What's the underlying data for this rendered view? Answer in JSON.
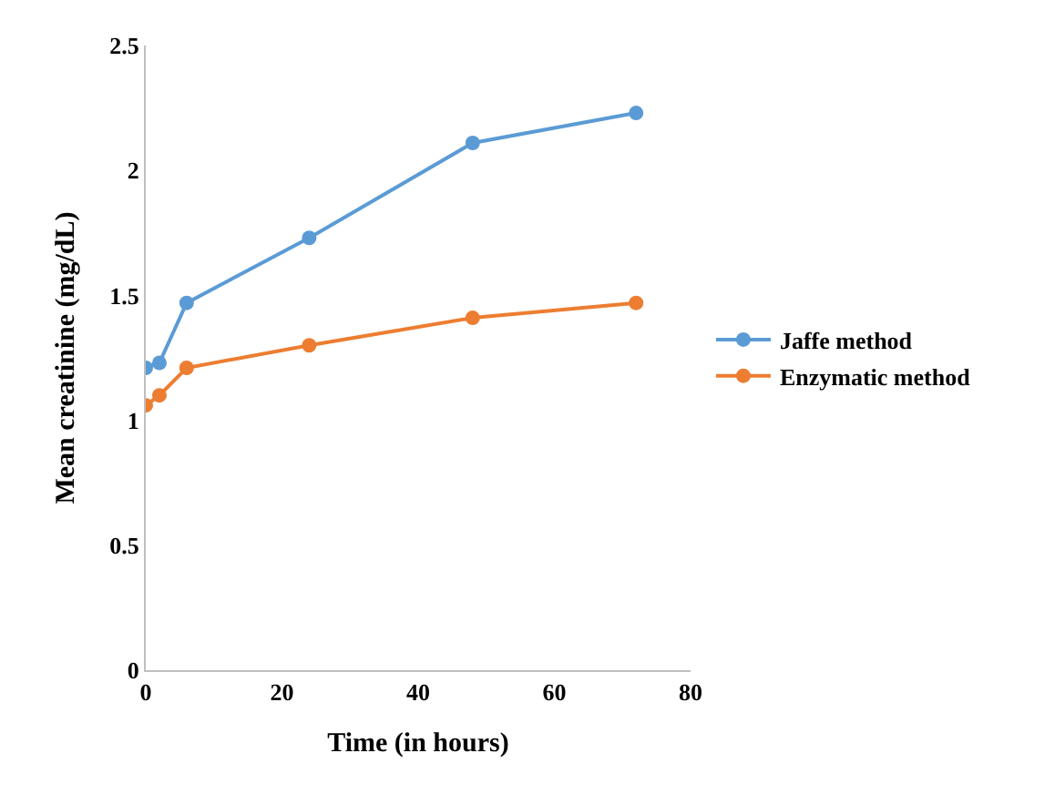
{
  "chart_data": {
    "type": "line",
    "xlabel": "Time (in hours)",
    "ylabel": "Mean creatinine (mg/dL)",
    "x": [
      0,
      2,
      6,
      24,
      48,
      72
    ],
    "series": [
      {
        "name": "Jaffe method",
        "color": "#5b9bd5",
        "values": [
          1.21,
          1.23,
          1.47,
          1.73,
          2.11,
          2.23
        ]
      },
      {
        "name": "Enzymatic method",
        "color": "#ed7d31",
        "values": [
          1.06,
          1.1,
          1.21,
          1.3,
          1.41,
          1.47
        ]
      }
    ],
    "xlim": [
      0,
      80
    ],
    "xticks": [
      0,
      20,
      40,
      60,
      80
    ],
    "ylim": [
      0,
      2.5
    ],
    "yticks": [
      0,
      0.5,
      1,
      1.5,
      2,
      2.5
    ],
    "legend": "right",
    "marker": "circle",
    "line_style": "solid"
  }
}
